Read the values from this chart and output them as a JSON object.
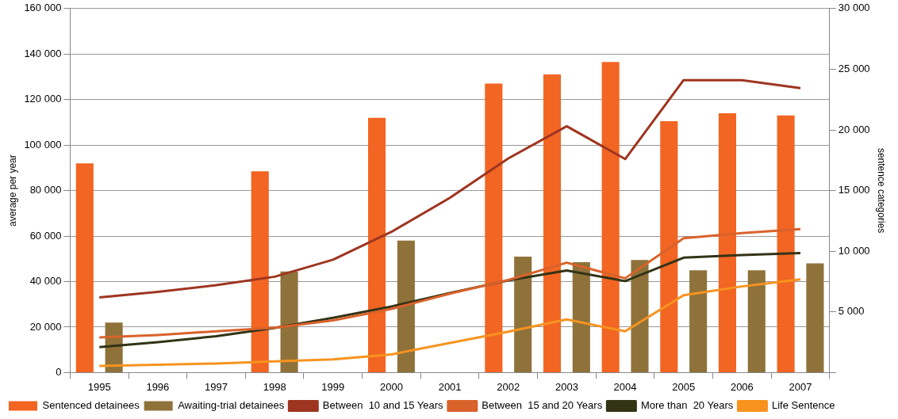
{
  "chart_data": {
    "type": "bar",
    "ylabel": "average per year",
    "y2label": "sentence categories",
    "categories": [
      "1995",
      "1996",
      "1997",
      "1998",
      "1999",
      "2000",
      "2001",
      "2002",
      "2003",
      "2004",
      "2005",
      "2006",
      "2007"
    ],
    "series": [
      {
        "name": "Sentenced detainees",
        "color": "#f26522",
        "values": [
          92000,
          null,
          null,
          88500,
          null,
          112000,
          null,
          127000,
          131000,
          136500,
          110500,
          114000,
          113000
        ]
      },
      {
        "name": "Awaiting-trial detainees",
        "color": "#8f723a",
        "values": [
          22000,
          null,
          null,
          44400,
          null,
          58000,
          null,
          51000,
          48500,
          49500,
          45000,
          45000,
          48000
        ]
      },
      {
        "name": "Between  10 and 15 Years",
        "type": "line",
        "axis": "y2",
        "color": "#9e3520",
        "values": [
          6200,
          6650,
          7200,
          7900,
          9300,
          11600,
          14400,
          17650,
          20300,
          17600,
          24100,
          24100,
          23450
        ]
      },
      {
        "name": "Between  15 and 20 Years",
        "type": "line",
        "axis": "y2",
        "color": "#d9622b",
        "values": [
          2900,
          3100,
          3400,
          3700,
          4300,
          5250,
          6500,
          7630,
          9060,
          7770,
          11070,
          11500,
          11820
        ]
      },
      {
        "name": "More than  20 Years",
        "type": "line",
        "axis": "y2",
        "color": "#333316",
        "values": [
          2100,
          2500,
          3000,
          3680,
          4520,
          5450,
          6560,
          7600,
          8420,
          7540,
          9470,
          9690,
          9850
        ]
      },
      {
        "name": "Life Sentence",
        "type": "line",
        "axis": "y2",
        "color": "#f7931e",
        "values": [
          550,
          650,
          750,
          930,
          1080,
          1500,
          2440,
          3370,
          4380,
          3400,
          6370,
          7100,
          7680
        ]
      }
    ],
    "ylim": [
      0,
      160000
    ],
    "yticks": [
      {
        "value": 0,
        "label": "0"
      },
      {
        "value": 20000,
        "label": "20 000"
      },
      {
        "value": 40000,
        "label": "40 000"
      },
      {
        "value": 60000,
        "label": "60 000"
      },
      {
        "value": 80000,
        "label": "80 000"
      },
      {
        "value": 100000,
        "label": "100 000"
      },
      {
        "value": 120000,
        "label": "120 000"
      },
      {
        "value": 140000,
        "label": "140 000"
      },
      {
        "value": 160000,
        "label": "160 000"
      }
    ],
    "y2lim": [
      0,
      30000
    ],
    "y2ticks": [
      {
        "value": 0,
        "label": null
      },
      {
        "value": 5000,
        "label": "5 000"
      },
      {
        "value": 10000,
        "label": "10 000"
      },
      {
        "value": 15000,
        "label": "15 000"
      },
      {
        "value": 20000,
        "label": "20 000"
      },
      {
        "value": 25000,
        "label": "25 000"
      },
      {
        "value": 30000,
        "label": "30 000"
      }
    ],
    "grid": "y",
    "legend": "bottom",
    "marker": "none",
    "line_style": "solid"
  }
}
